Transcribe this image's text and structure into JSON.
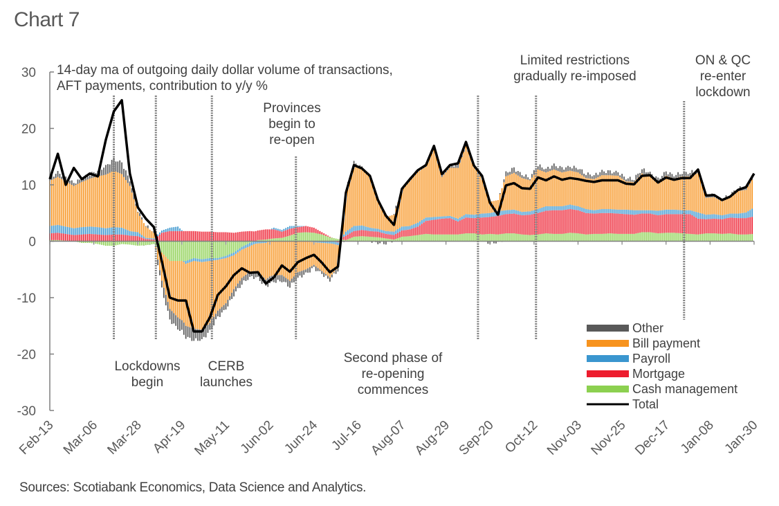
{
  "title": "Chart 7",
  "sources": "Sources: Scotiabank Economics, Data Science and Analytics.",
  "chart_data": {
    "type": "bar",
    "subtype": "stacked-bar-with-line",
    "title": "14-day ma of outgoing daily dollar volume of transactions, AFT payments, contribution to y/y %",
    "title_lines": [
      "14-day ma of outgoing daily dollar volume of transactions,",
      "AFT payments, contribution to y/y %"
    ],
    "xlabel": "",
    "ylabel": "",
    "ylim": [
      -30,
      30
    ],
    "yticks": [
      30,
      20,
      10,
      0,
      -10,
      -20,
      -30
    ],
    "x_start": "Feb-13",
    "x_end": "Jan-30",
    "xtick_labels": [
      "Feb-13",
      "Mar-06",
      "Mar-28",
      "Apr-19",
      "May-11",
      "Jun-02",
      "Jun-24",
      "Jul-16",
      "Aug-07",
      "Aug-29",
      "Sep-20",
      "Oct-12",
      "Nov-03",
      "Nov-25",
      "Dec-17",
      "Jan-08",
      "Jan-30"
    ],
    "x_step_days": 4,
    "grid": false,
    "legend_position": "bottom-right",
    "legend": [
      {
        "name": "Other",
        "color": "#595959",
        "kind": "bar"
      },
      {
        "name": "Bill payment",
        "color": "#f7931e",
        "kind": "bar"
      },
      {
        "name": "Payroll",
        "color": "#3a96cf",
        "kind": "bar"
      },
      {
        "name": "Mortgage",
        "color": "#ed1c2e",
        "kind": "bar"
      },
      {
        "name": "Cash management",
        "color": "#8cd050",
        "kind": "bar"
      },
      {
        "name": "Total",
        "color": "#000000",
        "kind": "line"
      }
    ],
    "series": [
      {
        "name": "Cash management",
        "values": [
          0.2,
          0.2,
          0.1,
          0,
          -0.3,
          -0.3,
          -0.5,
          -0.8,
          -0.8,
          -0.5,
          -0.6,
          -0.8,
          -0.7,
          -0.5,
          -2,
          -3.5,
          -3.5,
          -3.5,
          -3,
          -3.2,
          -3,
          -3,
          -2.6,
          -2,
          -1,
          -0.3,
          0.2,
          0.3,
          0.5,
          0.6,
          1,
          1.5,
          1.6,
          1.5,
          1.2,
          0.7,
          0.4,
          0.2,
          0.8,
          0.9,
          0.8,
          0.7,
          0.5,
          0.3,
          0.8,
          0.9,
          1.1,
          1.3,
          1.2,
          1.2,
          1.2,
          1.2,
          1.4,
          1.4,
          1.2,
          1.3,
          1.2,
          1.4,
          1.4,
          1.2,
          1.1,
          1.2,
          1.4,
          1.3,
          1.3,
          1.5,
          1.4,
          1.2,
          1.3,
          1.3,
          1.4,
          1.3,
          1.3,
          1.3,
          1.6,
          1.6,
          1.4,
          1.5,
          1.5,
          1.4,
          1.3,
          1.2,
          1.4,
          1.4,
          1.3,
          1.4,
          1.2,
          1.2,
          1.3
        ]
      },
      {
        "name": "Mortgage",
        "values": [
          1.2,
          1.3,
          1.2,
          1.1,
          1.2,
          1.3,
          1.2,
          1.1,
          1.2,
          1.2,
          1,
          0.9,
          0.4,
          0.3,
          1.5,
          1.8,
          1.8,
          1.8,
          1.8,
          1.7,
          1.7,
          1.6,
          1.6,
          1.5,
          1.7,
          1.8,
          1.7,
          1.8,
          1.6,
          1.1,
          1.2,
          1,
          1.1,
          0.9,
          0.4,
          0.1,
          -0.2,
          0.8,
          1,
          1.1,
          1,
          1,
          0.8,
          0.8,
          1.1,
          1.2,
          1.5,
          2.3,
          2.6,
          2.8,
          2.9,
          2.3,
          2.8,
          2.7,
          3,
          3,
          3.3,
          3.4,
          3.5,
          3.4,
          3.6,
          3.8,
          4,
          4.2,
          4.2,
          4.2,
          4.1,
          3.8,
          3.6,
          3.7,
          3.6,
          3.6,
          3.5,
          3.4,
          3.3,
          3.3,
          3.2,
          3.3,
          3.3,
          3.4,
          3.5,
          2.8,
          2.5,
          2.6,
          2.6,
          2.8,
          2.9,
          2.9,
          3.1
        ]
      },
      {
        "name": "Payroll",
        "values": [
          1.3,
          1.4,
          1.3,
          1.2,
          1.3,
          1.3,
          1.3,
          1.2,
          1.3,
          1.2,
          0.8,
          0.7,
          0.2,
          0.2,
          0.4,
          0.6,
          0.8,
          -0.5,
          -0.5,
          -0.5,
          -0.5,
          -0.3,
          -0.4,
          -0.5,
          -0.5,
          -0.6,
          -0.4,
          -0.3,
          0.3,
          0.3,
          0.5,
          0.2,
          0,
          -0.2,
          -0.3,
          -0.4,
          -0.5,
          0.7,
          0.9,
          0.8,
          0.6,
          0.5,
          0.5,
          0.6,
          0.7,
          0.6,
          0.7,
          0.6,
          0.5,
          0.4,
          0.4,
          0.5,
          0.6,
          0.6,
          0.7,
          0.7,
          0.8,
          0.7,
          0.7,
          0.6,
          0.6,
          0.7,
          0.8,
          0.7,
          0.7,
          0.8,
          0.7,
          0.7,
          0.6,
          0.7,
          0.7,
          0.7,
          0.8,
          0.8,
          0.6,
          0.6,
          0.8,
          0.8,
          0.8,
          0.7,
          0.7,
          1.1,
          0.8,
          0.8,
          0.7,
          0.7,
          0.8,
          1,
          1.6
        ]
      },
      {
        "name": "Bill payment",
        "values": [
          8,
          8.5,
          8,
          7.5,
          8,
          8.5,
          9,
          9.5,
          10,
          9.5,
          8,
          3.5,
          2,
          1,
          -5,
          -8.5,
          -10,
          -11,
          -12,
          -12,
          -11,
          -9,
          -8,
          -6,
          -5,
          -4.5,
          -5,
          -6.5,
          -6,
          -6,
          -7,
          -5.5,
          -5,
          -4,
          -5,
          -6,
          -4,
          7,
          11,
          10,
          9,
          5,
          2.5,
          3,
          6.5,
          8,
          9,
          9,
          12,
          7,
          8.5,
          9,
          12,
          8.5,
          6,
          2,
          2,
          6,
          6.5,
          6,
          5.5,
          7,
          6,
          6.5,
          6,
          6,
          6,
          5.5,
          5.5,
          6,
          6,
          6,
          5,
          5,
          6.5,
          6,
          5,
          6,
          5.5,
          6,
          6,
          7,
          3,
          3,
          2.5,
          3,
          4,
          4,
          5.5
        ]
      },
      {
        "name": "Other",
        "values": [
          0.5,
          0.8,
          0.6,
          0.5,
          0.6,
          0.8,
          1,
          1.5,
          2,
          2,
          1,
          0.4,
          0.2,
          0.1,
          -1.5,
          -2,
          -2,
          -2,
          -2,
          -1.8,
          -1.5,
          -1.2,
          -1,
          -1,
          -1,
          -1,
          -1.2,
          -1.3,
          -1.2,
          -1,
          -1,
          -1,
          -0.8,
          -0.6,
          -0.5,
          -0.5,
          -0.4,
          0.3,
          0.3,
          0.2,
          0.1,
          -0.3,
          -0.3,
          0.2,
          0.2,
          0.3,
          0.3,
          0.3,
          0.6,
          0.5,
          0.5,
          0.6,
          0.8,
          0.5,
          0.3,
          -0.3,
          -0.2,
          0.6,
          0.8,
          0.6,
          0.5,
          0.8,
          0.6,
          0.8,
          0.7,
          0.7,
          0.8,
          0.8,
          0.7,
          0.7,
          0.6,
          0.6,
          0.6,
          0.6,
          0.8,
          0.6,
          0.6,
          0.7,
          0.6,
          0.7,
          0.7,
          0.6,
          0.4,
          0.4,
          0.3,
          0.4,
          0.5,
          0.5,
          0.7
        ]
      },
      {
        "name": "Total",
        "values": [
          11,
          15.5,
          10,
          13,
          11,
          12,
          11.5,
          18,
          23,
          25,
          12,
          6,
          4,
          2.5,
          -3.6,
          -10,
          -10.5,
          -10.5,
          -16,
          -16,
          -13.5,
          -9.5,
          -8,
          -6,
          -4.8,
          -5.6,
          -5.5,
          -7.5,
          -6.4,
          -4.3,
          -5.4,
          -3.7,
          -3,
          -2.4,
          -3.8,
          -5.5,
          -4.5,
          8.6,
          13.5,
          12.9,
          11.6,
          7.3,
          4.5,
          2.9,
          9.3,
          11,
          12.6,
          13.5,
          16.9,
          11.9,
          13.5,
          13.8,
          17.6,
          13.4,
          11.6,
          6.8,
          4.7,
          9.9,
          10.3,
          9.4,
          9.3,
          11.3,
          10.8,
          11.5,
          10.9,
          11.2,
          11,
          10.7,
          10.5,
          10.8,
          10.8,
          10.8,
          10.2,
          10.1,
          11.6,
          11.7,
          10.4,
          11.3,
          10.9,
          11.2,
          11.2,
          12.7,
          8.1,
          8.2,
          7.3,
          7.9,
          9.1,
          9.6,
          12
        ]
      }
    ],
    "annotations": [
      {
        "text_lines": [
          "Lockdowns",
          "begin"
        ],
        "date": "Mar-16"
      },
      {
        "text_lines": [
          "CERB",
          "launches"
        ],
        "date": "Apr-06"
      },
      {
        "text_lines": [
          "Provinces",
          "begin to",
          "re-open"
        ],
        "date": "May-04"
      },
      {
        "text_lines": [
          "Second phase of",
          "re-opening",
          "commences"
        ],
        "date": "Jun-15"
      },
      {
        "text_lines": [
          "Limited restrictions",
          "gradually re-imposed"
        ],
        "date": "Sep-14"
      },
      {
        "text_lines": [
          "ON & QC",
          "re-enter",
          "lockdown"
        ],
        "date": "Dec-26"
      }
    ]
  }
}
